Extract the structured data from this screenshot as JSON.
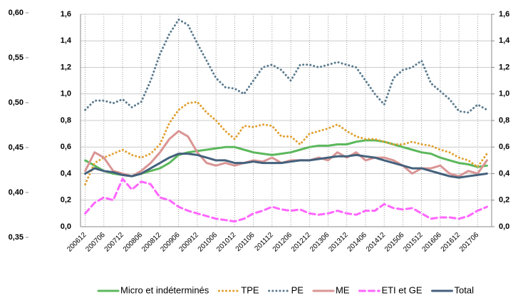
{
  "chart_data": {
    "type": "line",
    "categories": [
      "200612",
      null,
      "200706",
      null,
      "200712",
      null,
      "200806",
      null,
      "200812",
      null,
      "200906",
      null,
      "200912",
      null,
      "201006",
      null,
      "201012",
      null,
      "201106",
      null,
      "201112",
      null,
      "201206",
      null,
      "201212",
      null,
      "201306",
      null,
      "201312",
      null,
      "201406",
      null,
      "201412",
      null,
      "201506",
      null,
      "201512",
      null,
      "201606",
      null,
      "201612",
      null,
      "201706",
      null
    ],
    "series": [
      {
        "name": "Micro et indéterminés",
        "color": "#5cb85c",
        "dash": "solid",
        "values": [
          0.5,
          0.46,
          0.42,
          0.4,
          0.39,
          0.38,
          0.4,
          0.42,
          0.44,
          0.48,
          0.54,
          0.56,
          0.57,
          0.58,
          0.59,
          0.6,
          0.6,
          0.58,
          0.56,
          0.55,
          0.54,
          0.55,
          0.56,
          0.58,
          0.6,
          0.61,
          0.61,
          0.62,
          0.62,
          0.64,
          0.65,
          0.65,
          0.64,
          0.62,
          0.6,
          0.58,
          0.56,
          0.55,
          0.52,
          0.5,
          0.48,
          0.47,
          0.45,
          0.46
        ]
      },
      {
        "name": "TPE",
        "color": "#e0a030",
        "dash": "dot",
        "values": [
          0.32,
          0.48,
          0.52,
          0.55,
          0.58,
          0.54,
          0.52,
          0.55,
          0.62,
          0.78,
          0.88,
          0.93,
          0.94,
          0.86,
          0.8,
          0.72,
          0.66,
          0.76,
          0.75,
          0.77,
          0.76,
          0.68,
          0.68,
          0.62,
          0.7,
          0.72,
          0.74,
          0.77,
          0.72,
          0.68,
          0.66,
          0.66,
          0.64,
          0.62,
          0.62,
          0.64,
          0.62,
          0.61,
          0.58,
          0.56,
          0.52,
          0.5,
          0.45,
          0.55
        ]
      },
      {
        "name": "PE",
        "color": "#5b7b8f",
        "dash": "dot",
        "values": [
          0.88,
          0.95,
          0.95,
          0.93,
          0.96,
          0.9,
          0.94,
          1.1,
          1.3,
          1.45,
          1.56,
          1.52,
          1.38,
          1.25,
          1.12,
          1.05,
          1.04,
          1.0,
          1.1,
          1.2,
          1.22,
          1.18,
          1.1,
          1.22,
          1.22,
          1.2,
          1.22,
          1.24,
          1.22,
          1.2,
          1.1,
          1.0,
          0.92,
          1.12,
          1.18,
          1.2,
          1.25,
          1.08,
          1.02,
          0.96,
          0.87,
          0.86,
          0.92,
          0.88
        ]
      },
      {
        "name": "ME",
        "color": "#d99594",
        "dash": "solid",
        "values": [
          0.42,
          0.56,
          0.52,
          0.42,
          0.4,
          0.38,
          0.42,
          0.48,
          0.56,
          0.66,
          0.72,
          0.68,
          0.56,
          0.48,
          0.46,
          0.48,
          0.46,
          0.48,
          0.5,
          0.49,
          0.52,
          0.48,
          0.5,
          0.5,
          0.5,
          0.52,
          0.5,
          0.56,
          0.52,
          0.56,
          0.5,
          0.52,
          0.52,
          0.5,
          0.46,
          0.4,
          0.44,
          0.44,
          0.46,
          0.4,
          0.38,
          0.42,
          0.4,
          0.5
        ]
      },
      {
        "name": "ETI et GE",
        "color": "#ff66ff",
        "dash": "dash",
        "values": [
          0.1,
          0.18,
          0.22,
          0.2,
          0.36,
          0.28,
          0.34,
          0.32,
          0.22,
          0.2,
          0.15,
          0.12,
          0.1,
          0.08,
          0.06,
          0.05,
          0.04,
          0.06,
          0.1,
          0.12,
          0.15,
          0.13,
          0.12,
          0.13,
          0.1,
          0.09,
          0.1,
          0.12,
          0.1,
          0.09,
          0.12,
          0.12,
          0.17,
          0.14,
          0.13,
          0.14,
          0.1,
          0.06,
          0.07,
          0.07,
          0.06,
          0.08,
          0.12,
          0.15
        ]
      },
      {
        "name": "Total",
        "color": "#44617c",
        "dash": "solid",
        "values": [
          0.4,
          0.44,
          0.42,
          0.41,
          0.39,
          0.38,
          0.4,
          0.44,
          0.48,
          0.52,
          0.55,
          0.55,
          0.54,
          0.52,
          0.5,
          0.5,
          0.48,
          0.48,
          0.49,
          0.48,
          0.48,
          0.48,
          0.49,
          0.5,
          0.5,
          0.51,
          0.52,
          0.53,
          0.53,
          0.54,
          0.53,
          0.52,
          0.5,
          0.48,
          0.46,
          0.44,
          0.44,
          0.42,
          0.4,
          0.38,
          0.37,
          0.38,
          0.39,
          0.4
        ]
      }
    ],
    "ylim": [
      0,
      1.6
    ],
    "yticks": [
      {
        "value": 0,
        "label": "0,0"
      },
      {
        "value": 0.2,
        "label": "0,2"
      },
      {
        "value": 0.4,
        "label": "0,4"
      },
      {
        "value": 0.6,
        "label": "0,6"
      },
      {
        "value": 0.8,
        "label": "0,8"
      },
      {
        "value": 1.0,
        "label": "1,0"
      },
      {
        "value": 1.2,
        "label": "1,2"
      },
      {
        "value": 1.4,
        "label": "1,4"
      },
      {
        "value": 1.6,
        "label": "1,6"
      }
    ],
    "y2lim": [
      0,
      1.6
    ],
    "y2ticks": [
      {
        "value": 0,
        "label": "0,0"
      },
      {
        "value": 0.2,
        "label": "0,2"
      },
      {
        "value": 0.4,
        "label": "0,4"
      },
      {
        "value": 0.6,
        "label": "0,6"
      },
      {
        "value": 0.8,
        "label": "0,8"
      },
      {
        "value": 1.0,
        "label": "1,0"
      },
      {
        "value": 1.2,
        "label": "1,2"
      },
      {
        "value": 1.4,
        "label": "1,4"
      },
      {
        "value": 1.6,
        "label": "1,6"
      }
    ],
    "y3lim": [
      0.35,
      0.6
    ],
    "y3ticks": [
      {
        "value": 0.35,
        "label": "0,35"
      },
      {
        "value": 0.4,
        "label": "0,40"
      },
      {
        "value": 0.45,
        "label": "0,45"
      },
      {
        "value": 0.5,
        "label": "0,50"
      },
      {
        "value": 0.55,
        "label": "0,55"
      },
      {
        "value": 0.6,
        "label": "0,60"
      }
    ],
    "grid": true,
    "legend": "bottom"
  }
}
